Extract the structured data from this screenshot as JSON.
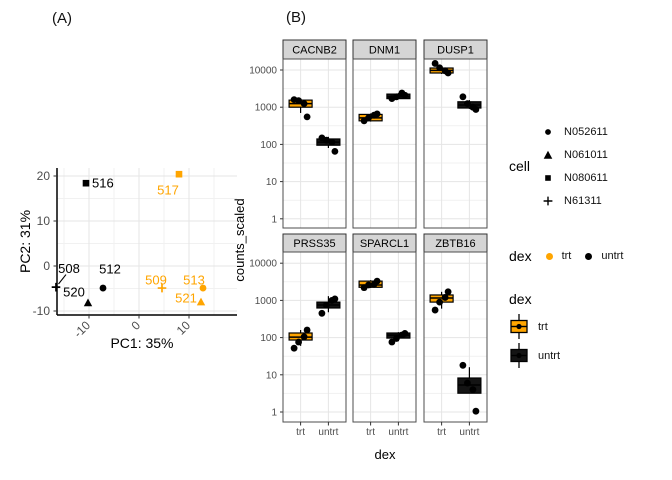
{
  "figure": {
    "panel_a_tag": "(A)",
    "panel_b_tag": "(B)"
  },
  "legends": {
    "cell": {
      "title": "cell",
      "items": [
        {
          "shape": "circle",
          "label": "N052611"
        },
        {
          "shape": "triangle",
          "label": "N061011"
        },
        {
          "shape": "square",
          "label": "N080611"
        },
        {
          "shape": "plus",
          "label": "N61311"
        }
      ]
    },
    "dex_points": {
      "title": "dex",
      "items": [
        {
          "label": "trt",
          "color": "#FFA500"
        },
        {
          "label": "untrt",
          "color": "#000000"
        }
      ]
    },
    "dex_boxes": {
      "title": "dex",
      "items": [
        {
          "label": "trt",
          "fill": "#FFA500"
        },
        {
          "label": "untrt",
          "fill": "#141414"
        }
      ]
    }
  },
  "chart_data": [
    {
      "panel": "A",
      "type": "scatter",
      "xlabel": "PC1: 35%",
      "ylabel": "PC2: 31%",
      "xtick_values": [
        -10,
        0,
        10
      ],
      "ytick_values": [
        20,
        10,
        0,
        -10
      ],
      "xlim": [
        -16.4,
        19.6
      ],
      "ylim": [
        -10.9,
        21.8
      ],
      "grid": true,
      "colors": {
        "trt": "#FFA500",
        "untrt": "#000000"
      },
      "points": [
        {
          "id": "508",
          "cell": "N61311",
          "dex": "untrt",
          "shape": "plus",
          "x": -16.6,
          "y": -4.7,
          "label": {
            "x": -14.0,
            "y": -0.6,
            "anchor": "middle"
          },
          "leader": {
            "x1": -14.6,
            "y1": -1.9,
            "x2": -16.1,
            "y2": -4.0
          }
        },
        {
          "id": "512",
          "cell": "N052611",
          "dex": "untrt",
          "shape": "circle",
          "x": -7.2,
          "y": -4.9,
          "label": {
            "x": -5.8,
            "y": -0.7,
            "anchor": "middle"
          }
        },
        {
          "id": "516",
          "cell": "N080611",
          "dex": "untrt",
          "shape": "square",
          "x": -10.6,
          "y": 18.4,
          "label": {
            "x": -9.4,
            "y": 18.4,
            "anchor": "start"
          }
        },
        {
          "id": "520",
          "cell": "N061011",
          "dex": "untrt",
          "shape": "triangle",
          "x": -10.2,
          "y": -8.2,
          "label": {
            "x": -13.0,
            "y": -5.8,
            "anchor": "middle"
          }
        },
        {
          "id": "509",
          "cell": "N61311",
          "dex": "trt",
          "shape": "plus",
          "x": 4.6,
          "y": -4.9,
          "label": {
            "x": 3.4,
            "y": -3.1,
            "anchor": "middle"
          }
        },
        {
          "id": "513",
          "cell": "N052611",
          "dex": "trt",
          "shape": "circle",
          "x": 12.8,
          "y": -4.9,
          "label": {
            "x": 11.0,
            "y": -3.1,
            "anchor": "middle"
          }
        },
        {
          "id": "517",
          "cell": "N080611",
          "dex": "trt",
          "shape": "square",
          "x": 8.0,
          "y": 20.4,
          "label": {
            "x": 5.8,
            "y": 16.9,
            "anchor": "middle"
          }
        },
        {
          "id": "521",
          "cell": "N061011",
          "dex": "trt",
          "shape": "triangle",
          "x": 12.4,
          "y": -8.0,
          "label": {
            "x": 9.4,
            "y": -7.1,
            "anchor": "middle"
          }
        }
      ]
    },
    {
      "panel": "B",
      "type": "boxplot",
      "xlabel": "dex",
      "ylabel": "counts_scaled",
      "categories": [
        "trt",
        "untrt"
      ],
      "ytick_values": [
        10000,
        1000,
        100,
        10,
        1
      ],
      "ytick_labels": [
        "10000",
        "1000",
        "100",
        "10",
        "1"
      ],
      "yscale": "log10",
      "colors": {
        "trt": "#FFA500",
        "untrt": "#141414"
      },
      "facets": [
        {
          "gene": "CACNB2",
          "boxes": [
            {
              "dex": "trt",
              "wlow": 700,
              "q1": 1000,
              "med": 1250,
              "q3": 1550,
              "whigh": 1700,
              "points": [
                1600,
                1500,
                1250,
                550
              ]
            },
            {
              "dex": "untrt",
              "wlow": 80,
              "q1": 95,
              "med": 115,
              "q3": 140,
              "whigh": 160,
              "points": [
                150,
                130,
                115,
                65
              ]
            }
          ]
        },
        {
          "gene": "DNM1",
          "boxes": [
            {
              "dex": "trt",
              "wlow": 410,
              "q1": 430,
              "med": 515,
              "q3": 640,
              "whigh": 680,
              "points": [
                430,
                520,
                610,
                660
              ]
            },
            {
              "dex": "untrt",
              "wlow": 1650,
              "q1": 1700,
              "med": 1900,
              "q3": 2250,
              "whigh": 2400,
              "points": [
                1700,
                1900,
                2400,
                2100
              ]
            }
          ]
        },
        {
          "gene": "DUSP1",
          "boxes": [
            {
              "dex": "trt",
              "wlow": 7800,
              "q1": 8300,
              "med": 9800,
              "q3": 11300,
              "whigh": 12000,
              "points": [
                15000,
                11500,
                9500,
                8300
              ]
            },
            {
              "dex": "untrt",
              "wlow": 900,
              "q1": 950,
              "med": 1150,
              "q3": 1400,
              "whigh": 1550,
              "points": [
                1900,
                1250,
                1000,
                870
              ]
            }
          ]
        },
        {
          "gene": "PRSS35",
          "boxes": [
            {
              "dex": "trt",
              "wlow": 60,
              "q1": 86,
              "med": 103,
              "q3": 133,
              "whigh": 160,
              "points": [
                52,
                76,
                105,
                160
              ]
            },
            {
              "dex": "untrt",
              "wlow": 480,
              "q1": 625,
              "med": 750,
              "q3": 900,
              "whigh": 1300,
              "points": [
                450,
                750,
                1000,
                1100
              ]
            }
          ]
        },
        {
          "gene": "SPARCL1",
          "boxes": [
            {
              "dex": "trt",
              "wlow": 2150,
              "q1": 2250,
              "med": 2600,
              "q3": 3300,
              "whigh": 3500,
              "points": [
                2200,
                2600,
                2700,
                3300
              ]
            },
            {
              "dex": "untrt",
              "wlow": 80,
              "q1": 97,
              "med": 117,
              "q3": 133,
              "whigh": 140,
              "points": [
                76,
                95,
                117,
                130
              ]
            }
          ]
        },
        {
          "gene": "ZBTB16",
          "boxes": [
            {
              "dex": "trt",
              "wlow": 600,
              "q1": 900,
              "med": 1160,
              "q3": 1400,
              "whigh": 1700,
              "points": [
                550,
                900,
                1200,
                1700
              ]
            },
            {
              "dex": "untrt",
              "wlow": 3.2,
              "q1": 3.2,
              "med": 5.3,
              "q3": 8.2,
              "whigh": 16,
              "points": [
                18,
                6,
                4,
                1.05
              ]
            }
          ]
        }
      ]
    }
  ]
}
